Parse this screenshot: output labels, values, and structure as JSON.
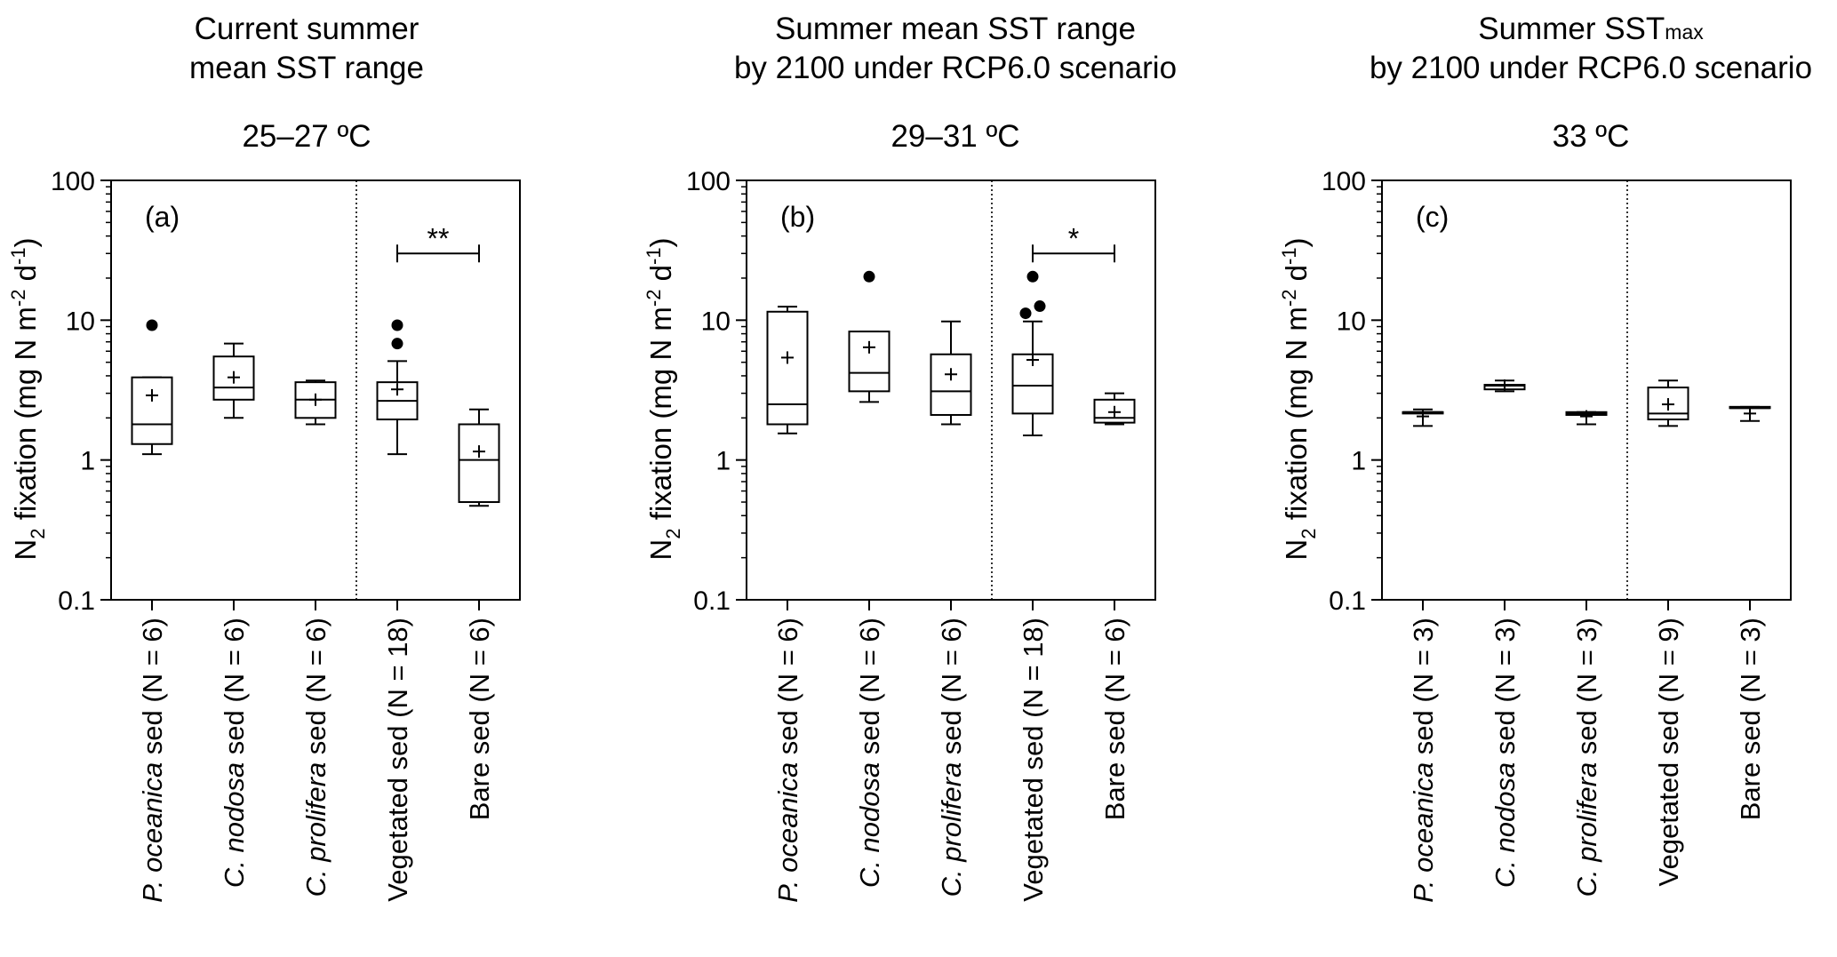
{
  "figure": {
    "y_axis_title": {
      "main": "N",
      "sub": "2",
      "rest": " fixation (mg N m",
      "sup1": "-2",
      "mid": " d",
      "sup2": "-1",
      "end": ")"
    },
    "y_ticks": [
      "0.1",
      "1",
      "10",
      "100"
    ],
    "y_scale": "log"
  },
  "chart_data": [
    {
      "type": "boxplot",
      "panel_label": "(a)",
      "title_lines": [
        "Current summer",
        "mean SST range"
      ],
      "temperature": "25–27 ºC",
      "ylim": [
        0.1,
        100
      ],
      "log_scale": true,
      "divider_after": 3,
      "categories": [
        {
          "italic": "P. oceanica",
          "rest": " sed (N = 6)"
        },
        {
          "italic": "C. nodosa",
          "rest": " sed (N = 6)"
        },
        {
          "italic": "C. prolifera",
          "rest": " sed (N = 6)"
        },
        {
          "italic": "",
          "rest": "Vegetated sed (N = 18)"
        },
        {
          "italic": "",
          "rest": "Bare sed (N = 6)"
        }
      ],
      "boxes": [
        {
          "min": 1.1,
          "q1": 1.3,
          "median": 1.8,
          "q3": 3.9,
          "max": 3.9,
          "mean": 2.9,
          "outliers": [
            9.2
          ]
        },
        {
          "min": 2.0,
          "q1": 2.7,
          "median": 3.3,
          "q3": 5.5,
          "max": 6.8,
          "mean": 3.9,
          "outliers": []
        },
        {
          "min": 1.8,
          "q1": 2.0,
          "median": 2.7,
          "q3": 3.6,
          "max": 3.7,
          "mean": 2.7,
          "outliers": []
        },
        {
          "min": 1.1,
          "q1": 1.95,
          "median": 2.65,
          "q3": 3.6,
          "max": 5.1,
          "mean": 3.2,
          "outliers": [
            9.2,
            6.8
          ]
        },
        {
          "min": 0.47,
          "q1": 0.5,
          "median": 1.0,
          "q3": 1.8,
          "max": 2.3,
          "mean": 1.15,
          "outliers": []
        }
      ],
      "significance": {
        "from": 3,
        "to": 4,
        "label": "**",
        "y": 30
      }
    },
    {
      "type": "boxplot",
      "panel_label": "(b)",
      "title_lines": [
        "Summer mean SST range",
        "by 2100 under RCP6.0 scenario"
      ],
      "temperature": "29–31 ºC",
      "ylim": [
        0.1,
        100
      ],
      "log_scale": true,
      "divider_after": 3,
      "categories": [
        {
          "italic": "P. oceanica",
          "rest": " sed (N = 6)"
        },
        {
          "italic": "C. nodosa",
          "rest": " sed (N = 6)"
        },
        {
          "italic": "C. prolifera",
          "rest": " sed (N = 6)"
        },
        {
          "italic": "",
          "rest": "Vegetated sed (N = 18)"
        },
        {
          "italic": "",
          "rest": "Bare sed (N = 6)"
        }
      ],
      "boxes": [
        {
          "min": 1.55,
          "q1": 1.8,
          "median": 2.5,
          "q3": 11.5,
          "max": 12.5,
          "mean": 5.4,
          "outliers": []
        },
        {
          "min": 2.6,
          "q1": 3.1,
          "median": 4.2,
          "q3": 8.3,
          "max": 8.3,
          "mean": 6.4,
          "outliers": [
            20.5
          ]
        },
        {
          "min": 1.8,
          "q1": 2.1,
          "median": 3.1,
          "q3": 5.7,
          "max": 9.8,
          "mean": 4.1,
          "outliers": []
        },
        {
          "min": 1.5,
          "q1": 2.15,
          "median": 3.4,
          "q3": 5.7,
          "max": 9.8,
          "mean": 5.2,
          "outliers": [
            20.5,
            11.2,
            12.6
          ]
        },
        {
          "min": 1.8,
          "q1": 1.85,
          "median": 2.0,
          "q3": 2.7,
          "max": 3.0,
          "mean": 2.2,
          "outliers": []
        }
      ],
      "significance": {
        "from": 3,
        "to": 4,
        "label": "*",
        "y": 30
      }
    },
    {
      "type": "boxplot",
      "panel_label": "(c)",
      "title_lines": [
        "Summer SST",
        "by 2100 under RCP6.0 scenario"
      ],
      "title_subscript": "max",
      "temperature": "33 ºC",
      "ylim": [
        0.1,
        100
      ],
      "log_scale": true,
      "divider_after": 3,
      "categories": [
        {
          "italic": "P. oceanica",
          "rest": " sed (N = 3)"
        },
        {
          "italic": "C. nodosa",
          "rest": " sed (N = 3)"
        },
        {
          "italic": "C. prolifera",
          "rest": " sed (N = 3)"
        },
        {
          "italic": "",
          "rest": "Vegetated sed (N = 9)"
        },
        {
          "italic": "",
          "rest": "Bare sed (N = 3)"
        }
      ],
      "boxes": [
        {
          "min": 1.75,
          "q1": 2.15,
          "median": 2.2,
          "q3": 2.2,
          "max": 2.3,
          "mean": 2.05,
          "outliers": []
        },
        {
          "min": 3.1,
          "q1": 3.2,
          "median": 3.4,
          "q3": 3.45,
          "max": 3.7,
          "mean": 3.4,
          "outliers": []
        },
        {
          "min": 1.8,
          "q1": 2.1,
          "median": 2.15,
          "q3": 2.2,
          "max": 2.2,
          "mean": 2.05,
          "outliers": []
        },
        {
          "min": 1.75,
          "q1": 1.95,
          "median": 2.15,
          "q3": 3.3,
          "max": 3.7,
          "mean": 2.5,
          "outliers": []
        },
        {
          "min": 1.9,
          "q1": 2.35,
          "median": 2.35,
          "q3": 2.4,
          "max": 2.4,
          "mean": 2.15,
          "outliers": []
        }
      ],
      "significance": null
    }
  ]
}
